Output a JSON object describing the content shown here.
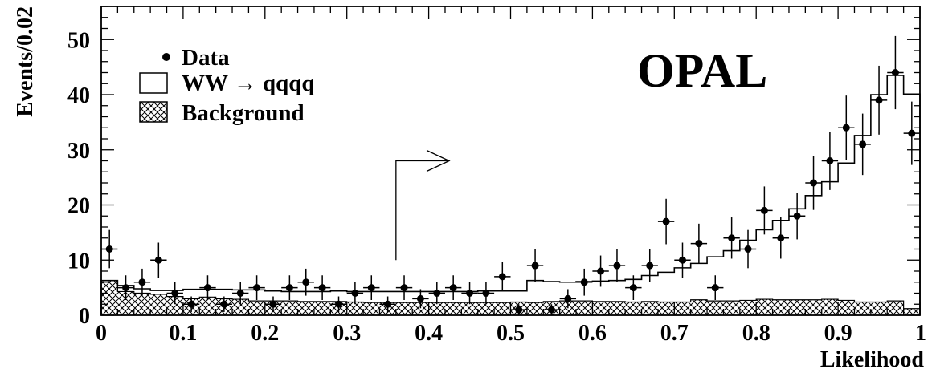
{
  "chart_data": {
    "type": "histogram",
    "experiment_label": "OPAL",
    "xlabel": "Likelihood",
    "ylabel": "Events/0.02",
    "xlim": [
      0,
      1
    ],
    "ylim": [
      0,
      56
    ],
    "x_ticks": [
      "0",
      "0.1",
      "0.2",
      "0.3",
      "0.4",
      "0.5",
      "0.6",
      "0.7",
      "0.8",
      "0.9",
      "1"
    ],
    "y_ticks": [
      "0",
      "10",
      "20",
      "30",
      "40",
      "50"
    ],
    "legend": {
      "placement": "top-left",
      "data_label": "Data",
      "signal_label": "WW → qqqq",
      "background_label": "Background"
    },
    "cut_arrow": {
      "x": 0.36,
      "y_from": 10,
      "y_to": 28,
      "x_head": 0.425
    },
    "bin_edges_start": 0,
    "bin_width": 0.02,
    "total_mc": [
      6.3,
      5.4,
      4.8,
      4.5,
      4.5,
      4.7,
      4.7,
      4.7,
      4.6,
      4.6,
      4.4,
      4.3,
      4.3,
      4.3,
      4.4,
      4.3,
      4.3,
      4.3,
      4.3,
      4.3,
      4.3,
      4.3,
      4.3,
      4.4,
      4.4,
      4.4,
      6.3,
      6.1,
      6.0,
      6.1,
      6.2,
      6.3,
      6.5,
      7.2,
      7.8,
      8.6,
      9.4,
      10.6,
      11.7,
      13.6,
      15.5,
      17.2,
      19.3,
      21.7,
      24.2,
      27.6,
      32.6,
      40.0,
      43.5,
      40.1
    ],
    "background": [
      6.3,
      4.3,
      4.0,
      3.8,
      3.4,
      3.0,
      3.3,
      3.0,
      2.9,
      2.6,
      2.6,
      2.6,
      2.5,
      2.5,
      2.5,
      2.4,
      2.3,
      2.3,
      2.3,
      2.3,
      2.3,
      2.3,
      2.3,
      2.3,
      2.3,
      2.4,
      2.3,
      2.5,
      2.6,
      2.6,
      2.5,
      2.5,
      2.4,
      2.5,
      2.4,
      2.4,
      2.8,
      2.6,
      2.6,
      2.7,
      2.9,
      2.8,
      2.8,
      2.8,
      2.9,
      2.7,
      2.4,
      2.4,
      2.6,
      1.2
    ],
    "data": {
      "x": [
        0.01,
        0.03,
        0.05,
        0.07,
        0.09,
        0.11,
        0.13,
        0.15,
        0.17,
        0.19,
        0.21,
        0.23,
        0.25,
        0.27,
        0.29,
        0.31,
        0.33,
        0.35,
        0.37,
        0.39,
        0.41,
        0.43,
        0.45,
        0.47,
        0.49,
        0.51,
        0.53,
        0.55,
        0.57,
        0.59,
        0.61,
        0.63,
        0.65,
        0.67,
        0.69,
        0.71,
        0.73,
        0.75,
        0.77,
        0.79,
        0.81,
        0.83,
        0.85,
        0.87,
        0.89,
        0.91,
        0.93,
        0.95,
        0.97,
        0.99
      ],
      "y": [
        12,
        5,
        6,
        10,
        4,
        2,
        5,
        2,
        4,
        5,
        2,
        5,
        6,
        5,
        2,
        4,
        5,
        2,
        5,
        3,
        4,
        5,
        4,
        4,
        7,
        1,
        9,
        1,
        3,
        6,
        8,
        9,
        5,
        9,
        17,
        10,
        13,
        5,
        14,
        12,
        19,
        14,
        18,
        24,
        28,
        34,
        31,
        39,
        44,
        33
      ]
    }
  }
}
